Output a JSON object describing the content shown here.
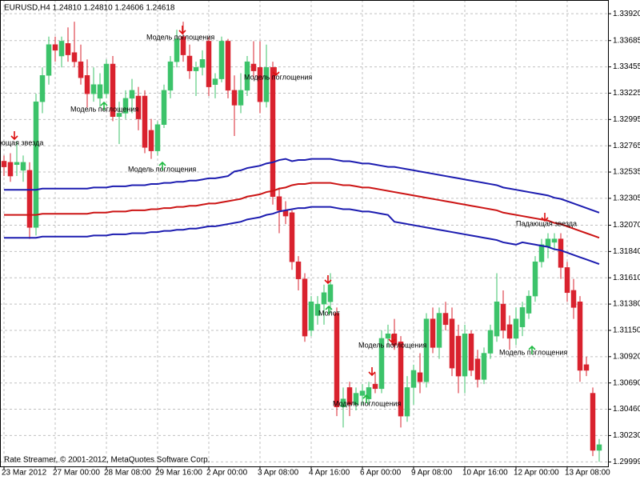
{
  "chart_data": {
    "type": "candlestick",
    "header": "EURUSD,H4  1.24810 1.24810 1.24606 1.24618",
    "footer": "Rate Streamer, © 2001-2012, MetaQuotes Software Corp.",
    "categories": [
      "23 Mar 2012",
      null,
      null,
      null,
      null,
      null,
      null,
      null,
      "27 Mar 00:00",
      null,
      null,
      null,
      null,
      null,
      null,
      null,
      "28 Mar 08:00",
      null,
      null,
      null,
      null,
      null,
      null,
      null,
      "29 Mar 16:00",
      null,
      null,
      null,
      null,
      null,
      null,
      null,
      "2 Apr 00:00",
      null,
      null,
      null,
      null,
      null,
      null,
      null,
      "3 Apr 08:00",
      null,
      null,
      null,
      null,
      null,
      null,
      null,
      "4 Apr 16:00",
      null,
      null,
      null,
      null,
      null,
      null,
      null,
      "6 Apr 00:00",
      null,
      null,
      null,
      null,
      null,
      null,
      null,
      "9 Apr 08:00",
      null,
      null,
      null,
      null,
      null,
      null,
      null,
      "10 Apr 16:00",
      null,
      null,
      null,
      null,
      null,
      null,
      null,
      "12 Apr 00:00",
      null,
      null,
      null,
      null,
      null,
      null,
      null,
      "13 Apr 08:00",
      null,
      null,
      null,
      null,
      null
    ],
    "open": [
      1.3263,
      1.3262,
      1.326,
      1.3255,
      1.3255,
      1.3205,
      1.3315,
      1.3338,
      1.3365,
      1.3355,
      1.3366,
      1.3358,
      1.335,
      1.3338,
      1.3322,
      1.3318,
      1.3322,
      1.3348,
      1.3302,
      1.3305,
      1.3318,
      1.332,
      1.332,
      1.329,
      1.3272,
      1.3295,
      1.3325,
      1.335,
      1.3372,
      1.3355,
      1.3342,
      1.3345,
      1.3368,
      1.333,
      1.3335,
      1.3368,
      1.3325,
      1.3312,
      1.3325,
      1.3348,
      1.3345,
      1.3315,
      1.3345,
      1.3232,
      1.322,
      1.3218,
      1.3175,
      1.316,
      1.3115,
      1.3128,
      1.3138,
      1.314,
      1.313,
      1.3048,
      1.3065,
      1.305,
      1.3058,
      1.3055,
      1.3068,
      1.3064,
      1.3108,
      1.3112,
      1.3105,
      1.304,
      1.3065,
      1.3078,
      1.307,
      1.3125,
      1.31,
      1.313,
      1.3125,
      1.311,
      1.3075,
      1.3112,
      1.309,
      1.3072,
      1.3095,
      1.311,
      1.3138,
      1.312,
      1.3108,
      1.3118,
      1.313,
      1.3145,
      1.3175,
      1.3188,
      1.3192,
      1.3195,
      1.317,
      1.315,
      1.314,
      1.3085,
      1.306,
      1.301
    ],
    "high": [
      1.3268,
      1.327,
      1.328,
      1.3268,
      1.3262,
      1.3322,
      1.3345,
      1.3372,
      1.3372,
      1.3372,
      1.338,
      1.3385,
      1.3365,
      1.3352,
      1.3345,
      1.334,
      1.3352,
      1.3355,
      1.3315,
      1.3325,
      1.3335,
      1.3328,
      1.3325,
      1.33,
      1.3298,
      1.333,
      1.3355,
      1.3378,
      1.3385,
      1.3365,
      1.335,
      1.336,
      1.3372,
      1.334,
      1.3372,
      1.337,
      1.3338,
      1.334,
      1.3355,
      1.3368,
      1.3368,
      1.3365,
      1.335,
      1.324,
      1.3228,
      1.322,
      1.318,
      1.3165,
      1.3145,
      1.3145,
      1.3155,
      1.3165,
      1.3135,
      1.3065,
      1.307,
      1.3065,
      1.3068,
      1.307,
      1.3078,
      1.3115,
      1.312,
      1.3125,
      1.311,
      1.3075,
      1.3085,
      1.3095,
      1.313,
      1.3135,
      1.3135,
      1.314,
      1.3135,
      1.312,
      1.312,
      1.3115,
      1.3098,
      1.31,
      1.312,
      1.3165,
      1.315,
      1.3128,
      1.3135,
      1.314,
      1.315,
      1.318,
      1.3195,
      1.32,
      1.32,
      1.32,
      1.3175,
      1.316,
      1.3145,
      1.3092,
      1.3065,
      1.302
    ],
    "low": [
      1.325,
      1.3245,
      1.325,
      1.3245,
      1.3195,
      1.3198,
      1.3305,
      1.333,
      1.335,
      1.3345,
      1.335,
      1.3345,
      1.333,
      1.331,
      1.3315,
      1.331,
      1.3318,
      1.3298,
      1.3278,
      1.33,
      1.3305,
      1.329,
      1.327,
      1.3265,
      1.3268,
      1.3292,
      1.3318,
      1.3345,
      1.335,
      1.3335,
      1.332,
      1.3338,
      1.332,
      1.3318,
      1.3332,
      1.3318,
      1.3285,
      1.3305,
      1.332,
      1.3335,
      1.3305,
      1.331,
      1.3225,
      1.32,
      1.3208,
      1.3168,
      1.315,
      1.3105,
      1.311,
      1.312,
      1.312,
      1.313,
      1.304,
      1.303,
      1.304,
      1.3045,
      1.305,
      1.305,
      1.306,
      1.306,
      1.31,
      1.3098,
      1.303,
      1.3035,
      1.305,
      1.306,
      1.3065,
      1.3095,
      1.309,
      1.3115,
      1.3075,
      1.306,
      1.306,
      1.3075,
      1.3065,
      1.3068,
      1.309,
      1.3105,
      1.3108,
      1.3098,
      1.3102,
      1.311,
      1.3125,
      1.314,
      1.317,
      1.3178,
      1.3185,
      1.316,
      1.314,
      1.3125,
      1.307,
      1.3075,
      1.3005,
      1.3
    ],
    "close": [
      1.3258,
      1.325,
      1.3262,
      1.3262,
      1.3205,
      1.3315,
      1.3338,
      1.3365,
      1.336,
      1.3368,
      1.3356,
      1.335,
      1.3336,
      1.3322,
      1.333,
      1.333,
      1.3348,
      1.3302,
      1.3305,
      1.3318,
      1.3325,
      1.33,
      1.3275,
      1.3272,
      1.3295,
      1.3325,
      1.335,
      1.337,
      1.3356,
      1.3342,
      1.3345,
      1.3352,
      1.3328,
      1.3335,
      1.3368,
      1.3325,
      1.3312,
      1.3325,
      1.335,
      1.3342,
      1.3315,
      1.3345,
      1.3232,
      1.322,
      1.3215,
      1.3175,
      1.316,
      1.311,
      1.314,
      1.3138,
      1.3148,
      1.3155,
      1.3048,
      1.3055,
      1.305,
      1.306,
      1.3062,
      1.3065,
      1.3064,
      1.3108,
      1.3112,
      1.3102,
      1.304,
      1.3065,
      1.308,
      1.307,
      1.3125,
      1.31,
      1.313,
      1.312,
      1.3082,
      1.3075,
      1.3112,
      1.308,
      1.3072,
      1.3095,
      1.3115,
      1.314,
      1.3115,
      1.3108,
      1.3125,
      1.3135,
      1.3145,
      1.3175,
      1.319,
      1.3195,
      1.3195,
      1.317,
      1.3148,
      1.3135,
      1.308,
      1.308,
      1.301,
      1.3015
    ],
    "up_color": "#3cc36a",
    "down_color": "#d9222e",
    "lines": [
      {
        "color": "#1c1cb0",
        "values": [
          1.3238,
          1.3238,
          1.3238,
          1.3238,
          1.3238,
          1.3238,
          1.3239,
          1.3239,
          1.3239,
          1.3239,
          1.3239,
          1.3239,
          1.3239,
          1.3239,
          1.324,
          1.324,
          1.324,
          1.3241,
          1.3241,
          1.3241,
          1.3242,
          1.3242,
          1.3242,
          1.3243,
          1.3243,
          1.3244,
          1.3244,
          1.3245,
          1.3245,
          1.3246,
          1.3246,
          1.3247,
          1.3248,
          1.3248,
          1.3249,
          1.325,
          1.3254,
          1.3255,
          1.3257,
          1.3258,
          1.3259,
          1.3261,
          1.3262,
          1.3264,
          1.3265,
          1.3263,
          1.3264,
          1.3264,
          1.3265,
          1.3265,
          1.3265,
          1.3265,
          1.3264,
          1.3263,
          1.3263,
          1.3262,
          1.3261,
          1.3261,
          1.326,
          1.3259,
          1.3258,
          1.3258,
          1.3257,
          1.3256,
          1.3255,
          1.3254,
          1.3253,
          1.3252,
          1.3251,
          1.325,
          1.3249,
          1.3248,
          1.3247,
          1.3246,
          1.3245,
          1.3244,
          1.3243,
          1.3242,
          1.324,
          1.3239,
          1.3238,
          1.3237,
          1.3236,
          1.3235,
          1.3234,
          1.3233,
          1.3231,
          1.323,
          1.3228,
          1.3226,
          1.3224,
          1.3222,
          1.322,
          1.3218
        ]
      },
      {
        "color": "#cc1414",
        "values": [
          1.3216,
          1.3216,
          1.3216,
          1.3216,
          1.3216,
          1.3216,
          1.3217,
          1.3217,
          1.3217,
          1.3217,
          1.3217,
          1.3217,
          1.3217,
          1.3217,
          1.3218,
          1.3218,
          1.3218,
          1.3219,
          1.3219,
          1.3219,
          1.322,
          1.322,
          1.322,
          1.3221,
          1.3221,
          1.3222,
          1.3222,
          1.3223,
          1.3223,
          1.3224,
          1.3224,
          1.3225,
          1.3226,
          1.3226,
          1.3227,
          1.3228,
          1.3229,
          1.323,
          1.3232,
          1.3233,
          1.3234,
          1.3236,
          1.3237,
          1.3239,
          1.324,
          1.3242,
          1.3243,
          1.3243,
          1.3244,
          1.3244,
          1.3244,
          1.3244,
          1.3243,
          1.3242,
          1.3242,
          1.3241,
          1.324,
          1.324,
          1.3239,
          1.3238,
          1.3237,
          1.3236,
          1.3235,
          1.3234,
          1.3233,
          1.3232,
          1.3231,
          1.323,
          1.3229,
          1.3228,
          1.3227,
          1.3226,
          1.3225,
          1.3224,
          1.3223,
          1.3222,
          1.3221,
          1.322,
          1.3218,
          1.3217,
          1.3216,
          1.3215,
          1.3214,
          1.3213,
          1.3212,
          1.3211,
          1.3209,
          1.3208,
          1.3206,
          1.3204,
          1.3202,
          1.32,
          1.3198,
          1.3196
        ]
      },
      {
        "color": "#1c1cb0",
        "values": [
          1.3196,
          1.3196,
          1.3196,
          1.3196,
          1.3196,
          1.3196,
          1.3197,
          1.3197,
          1.3197,
          1.3197,
          1.3197,
          1.3197,
          1.3197,
          1.3197,
          1.3198,
          1.3198,
          1.3198,
          1.3199,
          1.3199,
          1.3199,
          1.32,
          1.32,
          1.32,
          1.3201,
          1.3201,
          1.3202,
          1.3202,
          1.3203,
          1.3203,
          1.3204,
          1.3204,
          1.3205,
          1.3206,
          1.3206,
          1.3207,
          1.3208,
          1.3209,
          1.321,
          1.3212,
          1.3213,
          1.3214,
          1.3216,
          1.3217,
          1.3219,
          1.322,
          1.3221,
          1.3222,
          1.3222,
          1.3223,
          1.3223,
          1.3223,
          1.3223,
          1.3222,
          1.3221,
          1.3221,
          1.322,
          1.3219,
          1.3219,
          1.3218,
          1.3217,
          1.3216,
          1.321,
          1.3209,
          1.3208,
          1.3207,
          1.3206,
          1.3205,
          1.3204,
          1.3203,
          1.3202,
          1.3201,
          1.32,
          1.3199,
          1.3198,
          1.3197,
          1.3196,
          1.3195,
          1.3194,
          1.3192,
          1.3191,
          1.319,
          1.3192,
          1.3191,
          1.319,
          1.3189,
          1.3188,
          1.3186,
          1.3185,
          1.3183,
          1.3181,
          1.3179,
          1.3177,
          1.3175,
          1.3173
        ]
      }
    ],
    "annotations": [
      "ющая звезда",
      "Модель поглощения",
      "Модель поглощения",
      "Модель поглощения",
      "Модель поглощения",
      "Молот",
      "Модель поглощения",
      "Модель поглощения",
      "Модель поглощения",
      "Падающая звезда"
    ],
    "ylim": [
      1.2996,
      1.3404
    ],
    "yticks": [
      {
        "value": 1.3392,
        "label": "1.33920"
      },
      1.33685,
      1.33455,
      1.33225,
      1.32995,
      1.32765,
      1.32535,
      1.32305,
      {
        "value": 1.3207,
        "label": "1.32070"
      },
      {
        "value": 1.3184,
        "label": "1.31840"
      },
      {
        "value": 1.3161,
        "label": "1.31610"
      },
      {
        "value": 1.3138,
        "label": "1.31380"
      },
      {
        "value": 1.3115,
        "label": "1.31150"
      },
      {
        "value": 1.3092,
        "label": "1.30920"
      },
      {
        "value": 1.3069,
        "label": "1.30690"
      },
      {
        "value": 1.3046,
        "label": "1.30460"
      },
      {
        "value": 1.3023,
        "label": "1.30230"
      },
      1.29999
    ],
    "grid": true
  }
}
